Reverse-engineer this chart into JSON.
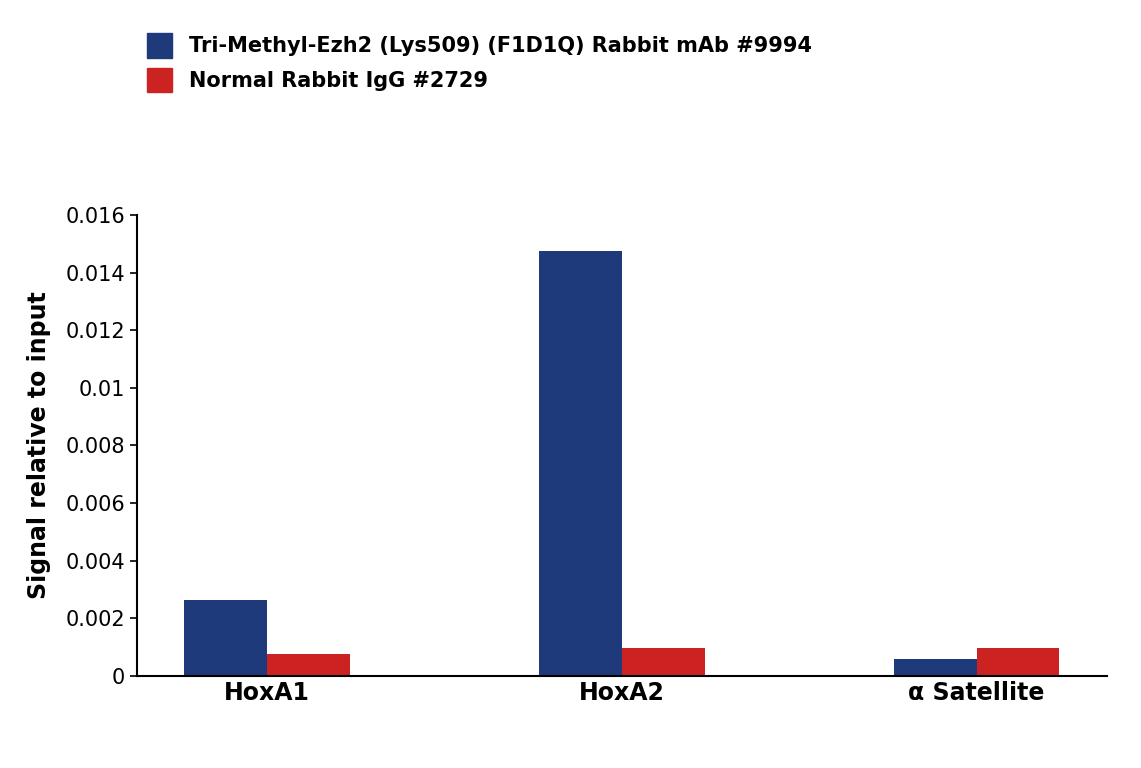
{
  "categories": [
    "HoxA1",
    "HoxA2",
    "α Satellite"
  ],
  "blue_values": [
    0.00265,
    0.01475,
    0.0006
  ],
  "red_values": [
    0.00075,
    0.00095,
    0.00095
  ],
  "blue_color": "#1F3A7A",
  "red_color": "#CC2222",
  "ylabel": "Signal relative to input",
  "ylim": [
    0,
    0.016
  ],
  "yticks": [
    0,
    0.002,
    0.004,
    0.006,
    0.008,
    0.01,
    0.012,
    0.014,
    0.016
  ],
  "legend_blue": "Tri-Methyl-Ezh2 (Lys509) (F1D1Q) Rabbit mAb #9994",
  "legend_red": "Normal Rabbit IgG #2729",
  "background_color": "#FFFFFF",
  "bar_width": 0.35,
  "x_positions": [
    0,
    1.5,
    3.0
  ],
  "xlim": [
    -0.55,
    3.55
  ]
}
